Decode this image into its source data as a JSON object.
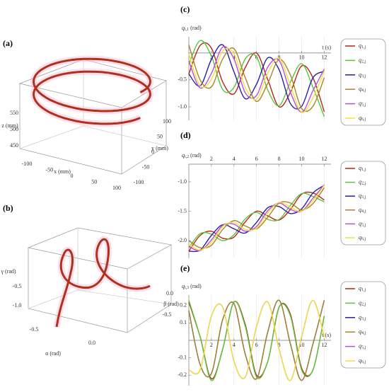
{
  "chart_data": [
    {
      "type": "curve3d",
      "panel_label": "(a)",
      "xlabel": "x (mm)",
      "xticks": [
        -100,
        -50,
        0,
        50,
        100
      ],
      "ylabel": "y (mm)",
      "yticks": [
        -100,
        -50,
        0,
        50,
        100
      ],
      "zlabel": "z (mm)",
      "zticks": [
        450,
        500,
        550
      ],
      "color": "#b0301c"
    },
    {
      "type": "curve3d",
      "panel_label": "(b)",
      "xlabel": "α (rad)",
      "xticks": [
        -0.5,
        {
          "value": 0,
          "label": "0.0"
        }
      ],
      "ylabel": "β (rad)",
      "yticks": [
        -0.5,
        {
          "value": 0,
          "label": "0.0"
        }
      ],
      "zlabel": "γ (rad)",
      "zticks": [
        {
          "value": -1,
          "label": "-1.0"
        },
        -0.5
      ],
      "color": "#b0301c"
    },
    {
      "type": "line",
      "panel_label": "(c)",
      "ylabel": "qi,1 (rad)",
      "xlabel": "t (s)",
      "x": [
        0,
        1,
        2,
        3,
        4,
        5,
        6,
        7,
        8,
        9,
        10,
        11,
        12
      ],
      "xlim": [
        0,
        12.6
      ],
      "xticks": [
        2,
        4,
        6,
        8,
        10,
        12
      ],
      "ylim": [
        -1.25,
        0.3
      ],
      "yticks": [
        {
          "value": -1,
          "label": "-1.0"
        },
        -0.5
      ],
      "grid": "x",
      "series": [
        {
          "name": "q1,j",
          "color": "#b5261c",
          "values": [
            -0.39,
            0.14,
            0.09,
            -0.54,
            -0.76,
            -0.27,
            0.0,
            -0.5,
            -1.0,
            -0.73,
            -0.24,
            -0.46,
            -1.09
          ]
        },
        {
          "name": "q2,j",
          "color": "#5cc43a",
          "values": [
            -0.21,
            0.23,
            -0.06,
            -0.68,
            -0.64,
            -0.11,
            -0.07,
            -0.69,
            -0.98,
            -0.54,
            -0.2,
            -0.64,
            -1.18
          ]
        },
        {
          "name": "q3,j",
          "color": "#2a1fa6",
          "values": [
            -0.39,
            -0.61,
            -0.12,
            0.15,
            -0.35,
            -0.85,
            -0.58,
            -0.09,
            -0.31,
            -0.94,
            -0.99,
            -0.46,
            -0.34
          ]
        },
        {
          "name": "q4,j",
          "color": "#a8862b",
          "values": [
            0.15,
            -0.5,
            -0.63,
            -0.11,
            0.08,
            -0.46,
            -0.9,
            -0.56,
            -0.12,
            -0.41,
            -1.03,
            -0.99,
            -0.46
          ]
        },
        {
          "name": "q5,j",
          "color": "#b84ee0",
          "values": [
            -0.15,
            -0.65,
            -0.38,
            0.11,
            -0.11,
            -0.74,
            -0.79,
            -0.26,
            -0.14,
            -0.73,
            -1.1,
            -0.7,
            -0.3
          ]
        },
        {
          "name": "q6,j",
          "color": "#f2e23a",
          "values": [
            -0.02,
            -0.61,
            -0.49,
            0.04,
            -0.01,
            -0.64,
            -0.86,
            -0.37,
            -0.1,
            -0.6,
            -1.1,
            -0.83,
            -0.34
          ]
        }
      ]
    },
    {
      "type": "line",
      "panel_label": "(d)",
      "ylabel": "qi,2 (rad)",
      "x": [
        0,
        1,
        2,
        3,
        4,
        5,
        6,
        7,
        8,
        9,
        10,
        11,
        12
      ],
      "xlim": [
        0,
        12.6
      ],
      "xticks": [
        2,
        4,
        6,
        8,
        10,
        12
      ],
      "ylim": [
        -2.3,
        -0.7
      ],
      "yticks": [
        {
          "value": -2,
          "label": "-2.0"
        },
        -1.5,
        {
          "value": -1,
          "label": "-1.0"
        }
      ],
      "grid": "x",
      "series": [
        {
          "name": "q1,j",
          "color": "#b5261c",
          "values": [
            -2.18,
            -1.91,
            -1.84,
            -1.96,
            -1.94,
            -1.68,
            -1.5,
            -1.58,
            -1.65,
            -1.47,
            -1.21,
            -1.19,
            -1.31
          ]
        },
        {
          "name": "q2,j",
          "color": "#5cc43a",
          "values": [
            -2.12,
            -1.88,
            -1.89,
            -2.0,
            -1.9,
            -1.63,
            -1.52,
            -1.64,
            -1.64,
            -1.4,
            -1.2,
            -1.25,
            -1.34
          ]
        },
        {
          "name": "q3,j",
          "color": "#2a1fa6",
          "values": [
            -2.18,
            -2.16,
            -1.91,
            -1.73,
            -1.8,
            -1.87,
            -1.69,
            -1.44,
            -1.42,
            -1.54,
            -1.46,
            -1.19,
            -1.06
          ]
        },
        {
          "name": "q4,j",
          "color": "#a8862b",
          "values": [
            -2.0,
            -2.12,
            -2.08,
            -1.81,
            -1.66,
            -1.75,
            -1.8,
            -1.6,
            -1.36,
            -1.36,
            -1.48,
            -1.37,
            -1.1
          ]
        },
        {
          "name": "q5,j",
          "color": "#b84ee0",
          "values": [
            -2.1,
            -2.17,
            -1.99,
            -1.74,
            -1.72,
            -1.84,
            -1.76,
            -1.49,
            -1.36,
            -1.47,
            -1.5,
            -1.28,
            -1.05
          ]
        },
        {
          "name": "q6,j",
          "color": "#f2e23a",
          "values": [
            -2.06,
            -2.16,
            -2.03,
            -1.76,
            -1.69,
            -1.81,
            -1.79,
            -1.53,
            -1.35,
            -1.43,
            -1.5,
            -1.32,
            -1.06
          ]
        }
      ]
    },
    {
      "type": "line",
      "panel_label": "(e)",
      "ylabel": "qi,3 (rad)",
      "xlabel": "t (s)",
      "x": [
        0,
        1,
        2,
        3,
        4,
        5,
        6,
        7,
        8,
        9,
        10,
        11,
        12
      ],
      "xlim": [
        0,
        12.6
      ],
      "xticks": [
        2,
        4,
        6,
        8,
        10,
        12
      ],
      "ylim": [
        -0.26,
        0.26
      ],
      "yticks": [
        -0.2,
        -0.1,
        0.1,
        0.2
      ],
      "grid": "x",
      "series": [
        {
          "name": "q1,j",
          "color": "#b5261c",
          "values": [
            0.22,
            0.02,
            -0.22,
            -0.05,
            0.22,
            0.09,
            -0.2,
            -0.12,
            0.19,
            0.15,
            -0.16,
            -0.17,
            0.14
          ]
        },
        {
          "name": "q2,j",
          "color": "#5cc43a",
          "values": [
            0.23,
            0.02,
            -0.23,
            -0.05,
            0.22,
            0.08,
            -0.21,
            -0.12,
            0.19,
            0.14,
            -0.17,
            -0.17,
            0.14
          ]
        },
        {
          "name": "q3,j",
          "color": "#2a1fa6",
          "values": [
            0.17,
            -0.14,
            -0.19,
            0.12,
            0.21,
            -0.08,
            -0.22,
            0.05,
            0.23,
            -0.02,
            -0.23,
            -0.02,
            0.23
          ]
        },
        {
          "name": "q4,j",
          "color": "#a8862b",
          "values": [
            0.17,
            -0.14,
            -0.19,
            0.12,
            0.21,
            -0.08,
            -0.22,
            0.05,
            0.23,
            -0.02,
            -0.23,
            -0.02,
            0.23
          ]
        },
        {
          "name": "q5,j",
          "color": "#b84ee0",
          "values": [
            -0.17,
            -0.17,
            0.14,
            0.19,
            -0.12,
            -0.21,
            0.08,
            0.22,
            -0.05,
            -0.23,
            0.02,
            0.23,
            0.02
          ]
        },
        {
          "name": "q6,j",
          "color": "#f2e23a",
          "values": [
            -0.17,
            -0.17,
            0.14,
            0.19,
            -0.12,
            -0.21,
            0.08,
            0.22,
            -0.05,
            -0.23,
            0.02,
            0.23,
            0.02
          ]
        }
      ]
    }
  ]
}
